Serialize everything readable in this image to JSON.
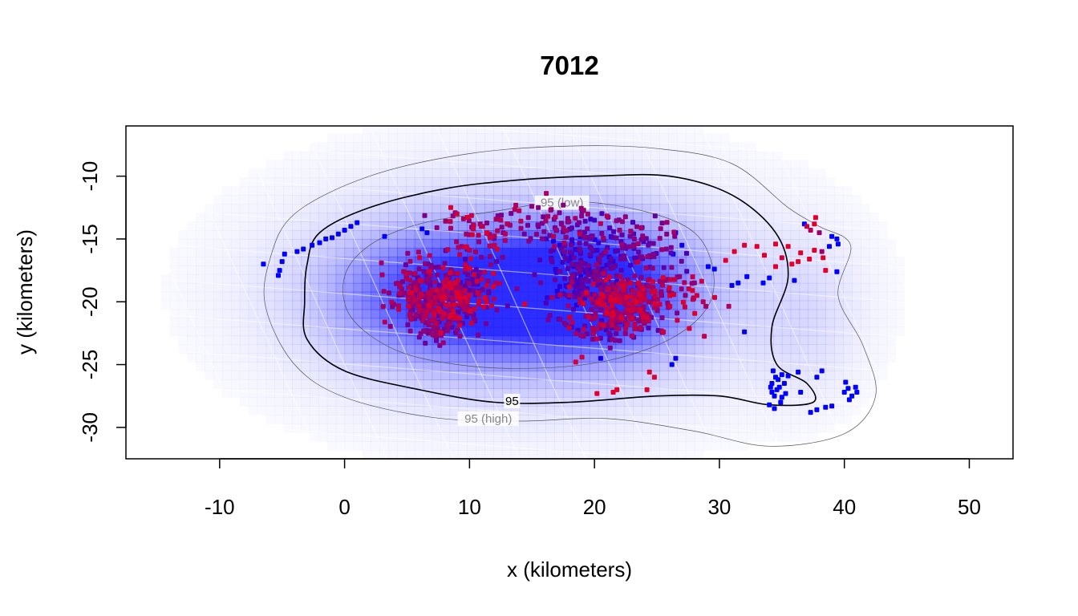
{
  "chart_data": {
    "type": "scatter",
    "title": "7012",
    "xlabel": "x (kilometers)",
    "ylabel": "y (kilometers)",
    "xlim": [
      -17.5,
      53.5
    ],
    "ylim": [
      -32.5,
      -6
    ],
    "x_ticks": [
      -10,
      0,
      10,
      20,
      30,
      40,
      50
    ],
    "y_ticks": [
      -10,
      -15,
      -20,
      -25,
      -30
    ],
    "grid": false,
    "colors": {
      "early": "#0000ff",
      "late": "#e0002a",
      "contour": "#000000",
      "ci_contour": "#555555",
      "ci_label": "#888888",
      "density": "#2222ff",
      "grid_overlay": "#ffffff"
    },
    "contours": [
      {
        "label": "95",
        "kind": "estimate",
        "points": [
          [
            -3,
            -17
          ],
          [
            -2,
            -14.5
          ],
          [
            2,
            -12.5
          ],
          [
            8,
            -11
          ],
          [
            14,
            -10.3
          ],
          [
            20,
            -10
          ],
          [
            26,
            -10
          ],
          [
            31,
            -11.5
          ],
          [
            34.5,
            -14.5
          ],
          [
            35.5,
            -18
          ],
          [
            34.2,
            -22
          ],
          [
            34.6,
            -25
          ],
          [
            37,
            -26.5
          ],
          [
            37.5,
            -28
          ],
          [
            34,
            -28.2
          ],
          [
            30,
            -27.5
          ],
          [
            25,
            -27.5
          ],
          [
            18,
            -28
          ],
          [
            12,
            -28
          ],
          [
            6,
            -27
          ],
          [
            0,
            -25.5
          ],
          [
            -3,
            -23
          ],
          [
            -3.2,
            -20
          ],
          [
            -3,
            -17
          ]
        ]
      },
      {
        "label": "95 (low)",
        "kind": "lower",
        "points": [
          [
            0,
            -18
          ],
          [
            2,
            -15.5
          ],
          [
            6,
            -13.8
          ],
          [
            12,
            -12.8
          ],
          [
            18,
            -12
          ],
          [
            24,
            -12.8
          ],
          [
            28,
            -14.5
          ],
          [
            29.5,
            -17.5
          ],
          [
            29,
            -20.5
          ],
          [
            26,
            -23
          ],
          [
            21,
            -24.7
          ],
          [
            15,
            -25.3
          ],
          [
            9,
            -25
          ],
          [
            4,
            -23.8
          ],
          [
            0.5,
            -21.2
          ],
          [
            0,
            -18
          ]
        ]
      },
      {
        "label": "95 (high)",
        "kind": "upper",
        "points": [
          [
            -6,
            -16.7
          ],
          [
            -4,
            -13
          ],
          [
            2,
            -10
          ],
          [
            10,
            -8.2
          ],
          [
            18,
            -7.6
          ],
          [
            25,
            -7.8
          ],
          [
            31,
            -9
          ],
          [
            35.5,
            -12.5
          ],
          [
            38,
            -14
          ],
          [
            40.5,
            -15.5
          ],
          [
            39.5,
            -19.5
          ],
          [
            41.5,
            -23.5
          ],
          [
            42.5,
            -27.5
          ],
          [
            40,
            -30.5
          ],
          [
            34,
            -31.5
          ],
          [
            28,
            -30.3
          ],
          [
            21,
            -29.3
          ],
          [
            14,
            -29.5
          ],
          [
            7,
            -29.2
          ],
          [
            0,
            -27.6
          ],
          [
            -4,
            -25
          ],
          [
            -6.3,
            -20.5
          ],
          [
            -6,
            -16.7
          ]
        ]
      }
    ],
    "density_centers": [
      {
        "x": 10,
        "y": -19.5,
        "sx": 6.5,
        "sy": 3.3,
        "w": 1.0
      },
      {
        "x": 20,
        "y": -19.0,
        "sx": 5.0,
        "sy": 3.3,
        "w": 1.0
      },
      {
        "x": 15,
        "y": -19.2,
        "sx": 13,
        "sy": 6.5,
        "w": 0.38
      },
      {
        "x": 37,
        "y": -21.5,
        "sx": 3.0,
        "sy": 4.5,
        "w": 0.12
      }
    ],
    "clusters": [
      {
        "cx": 9,
        "cy": -19.5,
        "sx": 1.7,
        "sy": 1.3,
        "n": 260,
        "c0": 0.35,
        "c1": 1.0
      },
      {
        "cx": 6,
        "cy": -19.5,
        "sx": 1.3,
        "sy": 1.5,
        "n": 140,
        "c0": 0.45,
        "c1": 0.85
      },
      {
        "cx": 7.5,
        "cy": -22.3,
        "sx": 0.8,
        "sy": 0.5,
        "n": 35,
        "c0": 0.45,
        "c1": 0.7
      },
      {
        "cx": 10.5,
        "cy": -14.5,
        "sx": 1.6,
        "sy": 1.1,
        "n": 40,
        "c0": 0.5,
        "c1": 1.0
      },
      {
        "cx": 16,
        "cy": -13.6,
        "sx": 2.6,
        "sy": 0.7,
        "n": 55,
        "c0": 0.5,
        "c1": 0.85
      },
      {
        "cx": 21.5,
        "cy": -14.5,
        "sx": 2.5,
        "sy": 0.9,
        "n": 55,
        "c0": 0.3,
        "c1": 0.75
      },
      {
        "cx": 18.8,
        "cy": -17.5,
        "sx": 1.6,
        "sy": 1.5,
        "n": 170,
        "c0": 0.1,
        "c1": 0.55
      },
      {
        "cx": 22.5,
        "cy": -20.0,
        "sx": 1.9,
        "sy": 1.2,
        "n": 230,
        "c0": 0.55,
        "c1": 1.0
      },
      {
        "cx": 21,
        "cy": -22.0,
        "sx": 2.5,
        "sy": 0.7,
        "n": 70,
        "c0": 0.25,
        "c1": 0.9
      },
      {
        "cx": 26.5,
        "cy": -19.5,
        "sx": 1.5,
        "sy": 0.9,
        "n": 25,
        "c0": 0.6,
        "c1": 1.0
      },
      {
        "cx": 24,
        "cy": -16.5,
        "sx": 2.0,
        "sy": 1.2,
        "n": 60,
        "c0": 0.3,
        "c1": 0.75
      }
    ],
    "points": [
      {
        "x": -6.5,
        "y": -17.0,
        "t": 0.0
      },
      {
        "x": -5.2,
        "y": -17.5,
        "t": 0.0
      },
      {
        "x": -5.0,
        "y": -16.8,
        "t": 0.0
      },
      {
        "x": -4.8,
        "y": -16.2,
        "t": 0.0
      },
      {
        "x": -5.3,
        "y": -17.9,
        "t": 0.0
      },
      {
        "x": -3.8,
        "y": -16.0,
        "t": 0.0
      },
      {
        "x": -3.3,
        "y": -15.8,
        "t": 0.0
      },
      {
        "x": -2.6,
        "y": -15.5,
        "t": 0.0
      },
      {
        "x": -2.0,
        "y": -15.3,
        "t": 0.0
      },
      {
        "x": -1.5,
        "y": -15.0,
        "t": 0.0
      },
      {
        "x": -1.0,
        "y": -14.9,
        "t": 0.0
      },
      {
        "x": -0.5,
        "y": -14.6,
        "t": 0.0
      },
      {
        "x": 0.0,
        "y": -14.3,
        "t": 0.0
      },
      {
        "x": 0.5,
        "y": -14.0,
        "t": 0.0
      },
      {
        "x": 1.0,
        "y": -13.7,
        "t": 0.0
      },
      {
        "x": 3.2,
        "y": -14.8,
        "t": 0.0
      },
      {
        "x": 6.2,
        "y": -14.2,
        "t": 0.0
      },
      {
        "x": 6.6,
        "y": -14.5,
        "t": 0.0
      },
      {
        "x": 26.5,
        "y": -14.5,
        "t": 0.05
      },
      {
        "x": 27.0,
        "y": -15.5,
        "t": 0.05
      },
      {
        "x": 26.3,
        "y": -16.2,
        "t": 0.05
      },
      {
        "x": 28.0,
        "y": -18.5,
        "t": 0.6
      },
      {
        "x": 28.7,
        "y": -20.0,
        "t": 0.8
      },
      {
        "x": 28.2,
        "y": -19.5,
        "t": 0.9
      },
      {
        "x": 29.1,
        "y": -17.2,
        "t": 0.0
      },
      {
        "x": 29.6,
        "y": -17.4,
        "t": 0.0
      },
      {
        "x": 26.5,
        "y": -24.5,
        "t": 0.05
      },
      {
        "x": 26.2,
        "y": -25.0,
        "t": 0.0
      },
      {
        "x": 20.5,
        "y": -24.5,
        "t": 0.1
      },
      {
        "x": 18.5,
        "y": -24.8,
        "t": 0.95
      },
      {
        "x": 19.0,
        "y": -24.4,
        "t": 0.9
      },
      {
        "x": 20.2,
        "y": -27.3,
        "t": 1.0
      },
      {
        "x": 21.5,
        "y": -27.2,
        "t": 1.0
      },
      {
        "x": 21.8,
        "y": -27.0,
        "t": 1.0
      },
      {
        "x": 24.2,
        "y": -27.0,
        "t": 1.0
      },
      {
        "x": 24.8,
        "y": -26.0,
        "t": 1.0
      },
      {
        "x": 24.4,
        "y": -25.6,
        "t": 1.0
      },
      {
        "x": 32.0,
        "y": -22.4,
        "t": 0.0
      },
      {
        "x": 31.0,
        "y": -18.7,
        "t": 0.0
      },
      {
        "x": 31.5,
        "y": -18.5,
        "t": 0.0
      },
      {
        "x": 32.2,
        "y": -18.0,
        "t": 0.0
      },
      {
        "x": 30.5,
        "y": -16.7,
        "t": 1.0
      },
      {
        "x": 31.2,
        "y": -16.0,
        "t": 1.0
      },
      {
        "x": 32.0,
        "y": -15.5,
        "t": 1.0
      },
      {
        "x": 33.0,
        "y": -15.6,
        "t": 1.0
      },
      {
        "x": 33.6,
        "y": -16.3,
        "t": 1.0
      },
      {
        "x": 34.5,
        "y": -15.4,
        "t": 1.0
      },
      {
        "x": 35.0,
        "y": -16.5,
        "t": 0.9
      },
      {
        "x": 34.5,
        "y": -17.2,
        "t": 1.0
      },
      {
        "x": 35.5,
        "y": -15.6,
        "t": 1.0
      },
      {
        "x": 35.8,
        "y": -17.0,
        "t": 1.0
      },
      {
        "x": 36.3,
        "y": -16.8,
        "t": 1.0
      },
      {
        "x": 36.0,
        "y": -18.3,
        "t": 0.0
      },
      {
        "x": 36.5,
        "y": -16.1,
        "t": 1.0
      },
      {
        "x": 37.2,
        "y": -16.6,
        "t": 1.0
      },
      {
        "x": 37.6,
        "y": -15.9,
        "t": 1.0
      },
      {
        "x": 38.2,
        "y": -16.0,
        "t": 0.7
      },
      {
        "x": 38.5,
        "y": -17.5,
        "t": 1.0
      },
      {
        "x": 38.3,
        "y": -16.5,
        "t": 1.0
      },
      {
        "x": 39.4,
        "y": -17.6,
        "t": 0.0
      },
      {
        "x": 38.8,
        "y": -15.6,
        "t": 0.0
      },
      {
        "x": 39.5,
        "y": -15.4,
        "t": 0.0
      },
      {
        "x": 39.0,
        "y": -14.8,
        "t": 0.0
      },
      {
        "x": 38.0,
        "y": -14.5,
        "t": 0.7
      },
      {
        "x": 39.4,
        "y": -15.0,
        "t": 0.0
      },
      {
        "x": 37.6,
        "y": -13.8,
        "t": 1.0
      },
      {
        "x": 37.3,
        "y": -14.3,
        "t": 0.8
      },
      {
        "x": 37.0,
        "y": -14.0,
        "t": 0.9
      },
      {
        "x": 37.7,
        "y": -13.3,
        "t": 1.0
      },
      {
        "x": 36.8,
        "y": -13.8,
        "t": 0.0
      },
      {
        "x": 33.5,
        "y": -18.5,
        "t": 0.0
      },
      {
        "x": 34.0,
        "y": -18.1,
        "t": 0.0
      },
      {
        "x": 34.0,
        "y": -28.2,
        "t": 0.0
      },
      {
        "x": 34.2,
        "y": -26.5,
        "t": 0.0
      },
      {
        "x": 34.5,
        "y": -26.0,
        "t": 0.0
      },
      {
        "x": 34.4,
        "y": -27.5,
        "t": 0.0
      },
      {
        "x": 34.8,
        "y": -26.8,
        "t": 0.0
      },
      {
        "x": 35.0,
        "y": -25.8,
        "t": 0.0
      },
      {
        "x": 35.2,
        "y": -26.5,
        "t": 0.0
      },
      {
        "x": 34.3,
        "y": -25.5,
        "t": 0.0
      },
      {
        "x": 34.6,
        "y": -27.0,
        "t": 0.0
      },
      {
        "x": 34.1,
        "y": -26.8,
        "t": 0.0
      },
      {
        "x": 34.9,
        "y": -28.0,
        "t": 0.0
      },
      {
        "x": 35.3,
        "y": -27.3,
        "t": 0.0
      },
      {
        "x": 34.4,
        "y": -28.5,
        "t": 0.0
      },
      {
        "x": 35.5,
        "y": -25.9,
        "t": 0.0
      },
      {
        "x": 34.7,
        "y": -26.2,
        "t": 0.0
      },
      {
        "x": 34.2,
        "y": -27.2,
        "t": 0.0
      },
      {
        "x": 35.0,
        "y": -27.6,
        "t": 0.0
      },
      {
        "x": 36.5,
        "y": -27.2,
        "t": 0.0
      },
      {
        "x": 36.3,
        "y": -25.6,
        "t": 0.0
      },
      {
        "x": 37.8,
        "y": -26.0,
        "t": 0.0
      },
      {
        "x": 38.2,
        "y": -25.5,
        "t": 0.0
      },
      {
        "x": 37.3,
        "y": -28.8,
        "t": 0.0
      },
      {
        "x": 37.8,
        "y": -28.6,
        "t": 0.0
      },
      {
        "x": 38.5,
        "y": -28.4,
        "t": 0.0
      },
      {
        "x": 39.0,
        "y": -28.3,
        "t": 0.0
      },
      {
        "x": 40.0,
        "y": -27.2,
        "t": 0.0
      },
      {
        "x": 40.3,
        "y": -26.9,
        "t": 0.0
      },
      {
        "x": 40.6,
        "y": -27.5,
        "t": 0.0
      },
      {
        "x": 40.4,
        "y": -27.8,
        "t": 0.0
      },
      {
        "x": 40.9,
        "y": -26.8,
        "t": 0.0
      },
      {
        "x": 41.0,
        "y": -27.2,
        "t": 0.0
      },
      {
        "x": 40.1,
        "y": -26.4,
        "t": 0.0
      },
      {
        "x": 8.5,
        "y": -12.5,
        "t": 1.0
      },
      {
        "x": 9.0,
        "y": -13.0,
        "t": 0.9
      },
      {
        "x": 12.5,
        "y": -13.5,
        "t": 0.8
      },
      {
        "x": 11.4,
        "y": -14.5,
        "t": 1.0
      },
      {
        "x": 12.0,
        "y": -15.5,
        "t": 0.9
      },
      {
        "x": 15.5,
        "y": -12.5,
        "t": 0.6
      },
      {
        "x": 16.5,
        "y": -12.7,
        "t": 0.7
      },
      {
        "x": 17.5,
        "y": -12.3,
        "t": 0.6
      },
      {
        "x": 19.0,
        "y": -12.8,
        "t": 0.5
      },
      {
        "x": 20.0,
        "y": -13.5,
        "t": 0.3
      }
    ]
  }
}
